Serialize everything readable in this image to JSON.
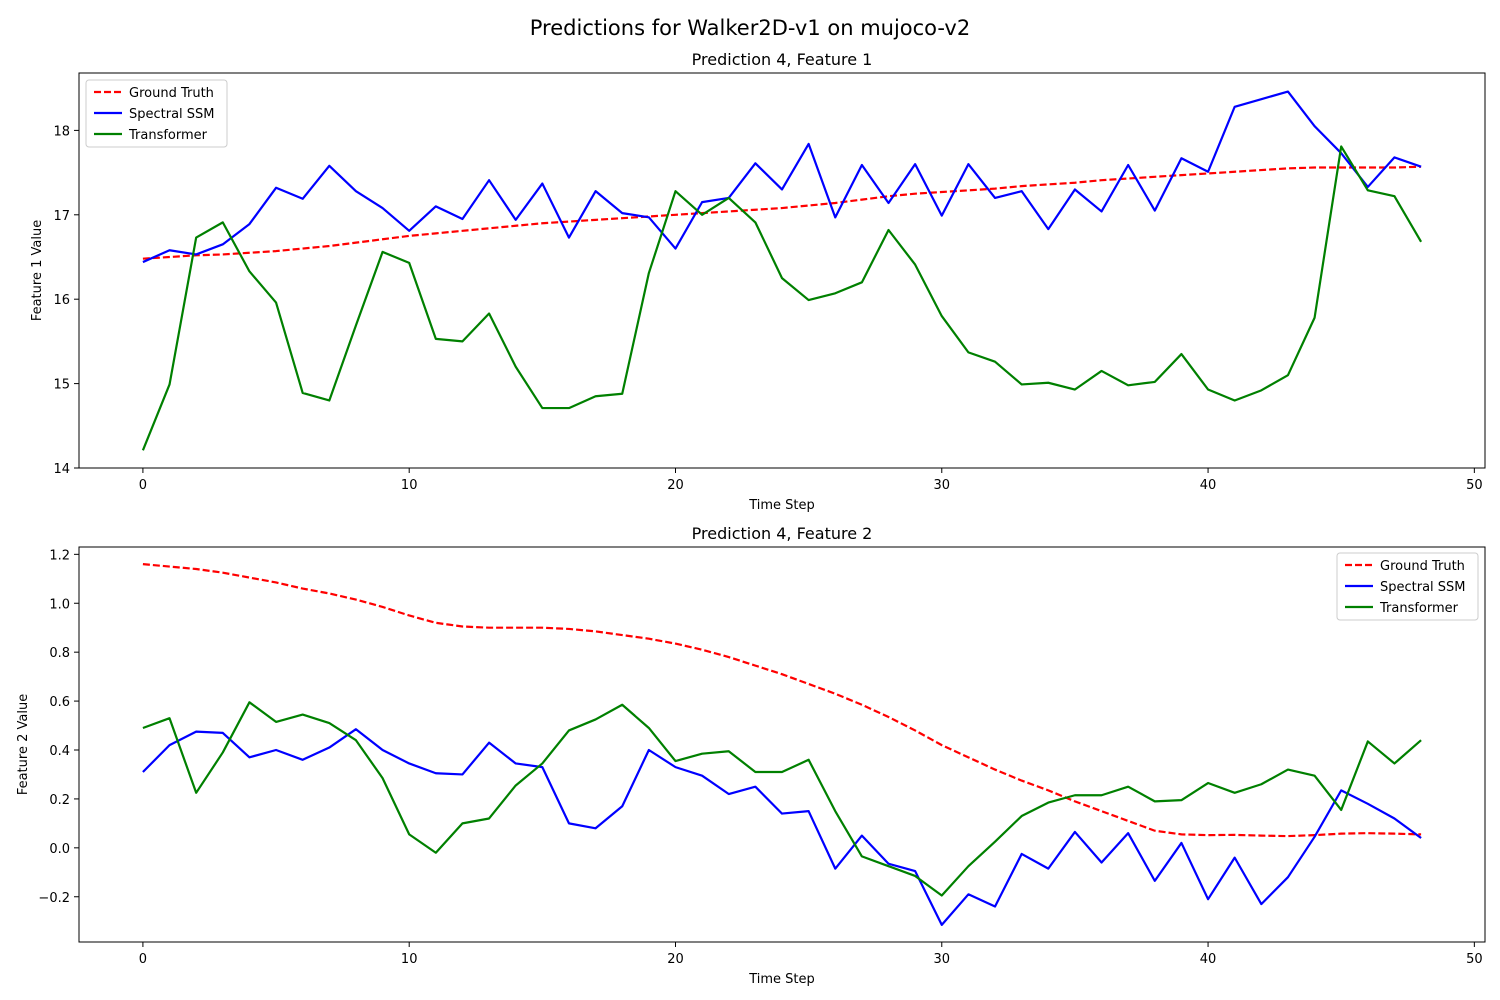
{
  "figure": {
    "title": "Predictions for Walker2D-v1 on mujoco-v2"
  },
  "chart_data": [
    {
      "type": "line",
      "title": "Prediction 4, Feature 1",
      "xlabel": "Time Step",
      "ylabel": "Feature 1 Value",
      "xlim": [
        -2.4,
        50.4
      ],
      "ylim": [
        14,
        18.68
      ],
      "xticks": [
        0,
        10,
        20,
        30,
        40,
        50
      ],
      "yticks": [
        14,
        15,
        16,
        17,
        18
      ],
      "legend_loc": "upper left",
      "grid": false,
      "x": [
        0,
        1,
        2,
        3,
        4,
        5,
        6,
        7,
        8,
        9,
        10,
        11,
        12,
        13,
        14,
        15,
        16,
        17,
        18,
        19,
        20,
        21,
        22,
        23,
        24,
        25,
        26,
        27,
        28,
        29,
        30,
        31,
        32,
        33,
        34,
        35,
        36,
        37,
        38,
        39,
        40,
        41,
        42,
        43,
        44,
        45,
        46,
        47,
        48
      ],
      "series": [
        {
          "name": "Ground Truth",
          "color": "#ff0000",
          "dash": "dashed",
          "values": [
            16.48,
            16.5,
            16.52,
            16.53,
            16.55,
            16.57,
            16.6,
            16.63,
            16.67,
            16.71,
            16.75,
            16.78,
            16.81,
            16.84,
            16.87,
            16.9,
            16.92,
            16.94,
            16.96,
            16.98,
            17.0,
            17.02,
            17.04,
            17.06,
            17.08,
            17.11,
            17.14,
            17.18,
            17.22,
            17.25,
            17.27,
            17.29,
            17.31,
            17.34,
            17.36,
            17.38,
            17.41,
            17.43,
            17.45,
            17.47,
            17.49,
            17.51,
            17.53,
            17.55,
            17.56,
            17.56,
            17.56,
            17.56,
            17.57
          ]
        },
        {
          "name": "Spectral SSM",
          "color": "#0000ff",
          "dash": "solid",
          "values": [
            16.44,
            16.58,
            16.53,
            16.65,
            16.89,
            17.32,
            17.19,
            17.58,
            17.28,
            17.08,
            16.81,
            17.1,
            16.95,
            17.41,
            16.94,
            17.37,
            16.73,
            17.28,
            17.02,
            16.97,
            16.6,
            17.15,
            17.2,
            17.61,
            17.3,
            17.84,
            16.97,
            17.59,
            17.14,
            17.6,
            16.99,
            17.6,
            17.2,
            17.28,
            16.83,
            17.3,
            17.04,
            17.59,
            17.05,
            17.67,
            17.51,
            18.28,
            18.37,
            18.46,
            18.05,
            17.73,
            17.33,
            17.68,
            17.57
          ]
        },
        {
          "name": "Transformer",
          "color": "#008000",
          "dash": "solid",
          "values": [
            14.21,
            14.99,
            16.73,
            16.91,
            16.33,
            15.96,
            14.89,
            14.8,
            15.69,
            16.56,
            16.43,
            15.53,
            15.5,
            15.83,
            15.2,
            14.71,
            14.71,
            14.85,
            14.88,
            16.31,
            17.28,
            17.0,
            17.2,
            16.91,
            16.25,
            15.99,
            16.07,
            16.2,
            16.82,
            16.41,
            15.8,
            15.37,
            15.26,
            14.99,
            15.01,
            14.93,
            15.15,
            14.98,
            15.02,
            15.35,
            14.93,
            14.8,
            14.92,
            15.1,
            15.78,
            17.81,
            17.29,
            17.22,
            16.68
          ]
        }
      ]
    },
    {
      "type": "line",
      "title": "Prediction 4, Feature 2",
      "xlabel": "Time Step",
      "ylabel": "Feature 2 Value",
      "xlim": [
        -2.4,
        50.4
      ],
      "ylim": [
        -0.385,
        1.23
      ],
      "xticks": [
        0,
        10,
        20,
        30,
        40,
        50
      ],
      "yticks": [
        -0.2,
        0.0,
        0.2,
        0.4,
        0.6,
        0.8,
        1.0,
        1.2
      ],
      "ytick_labels": [
        "−0.2",
        "0.0",
        "0.2",
        "0.4",
        "0.6",
        "0.8",
        "1.0",
        "1.2"
      ],
      "legend_loc": "upper right",
      "grid": false,
      "x": [
        0,
        1,
        2,
        3,
        4,
        5,
        6,
        7,
        8,
        9,
        10,
        11,
        12,
        13,
        14,
        15,
        16,
        17,
        18,
        19,
        20,
        21,
        22,
        23,
        24,
        25,
        26,
        27,
        28,
        29,
        30,
        31,
        32,
        33,
        34,
        35,
        36,
        37,
        38,
        39,
        40,
        41,
        42,
        43,
        44,
        45,
        46,
        47,
        48
      ],
      "series": [
        {
          "name": "Ground Truth",
          "color": "#ff0000",
          "dash": "dashed",
          "values": [
            1.16,
            1.15,
            1.14,
            1.125,
            1.105,
            1.085,
            1.06,
            1.04,
            1.015,
            0.985,
            0.95,
            0.92,
            0.905,
            0.9,
            0.9,
            0.9,
            0.895,
            0.885,
            0.87,
            0.855,
            0.835,
            0.81,
            0.78,
            0.745,
            0.71,
            0.67,
            0.63,
            0.585,
            0.535,
            0.48,
            0.42,
            0.37,
            0.32,
            0.275,
            0.235,
            0.19,
            0.15,
            0.11,
            0.07,
            0.055,
            0.052,
            0.053,
            0.05,
            0.048,
            0.052,
            0.058,
            0.06,
            0.058,
            0.055
          ]
        },
        {
          "name": "Spectral SSM",
          "color": "#0000ff",
          "dash": "solid",
          "values": [
            0.31,
            0.42,
            0.475,
            0.47,
            0.37,
            0.4,
            0.36,
            0.41,
            0.485,
            0.4,
            0.345,
            0.305,
            0.3,
            0.43,
            0.345,
            0.33,
            0.1,
            0.08,
            0.17,
            0.4,
            0.33,
            0.295,
            0.22,
            0.25,
            0.14,
            0.15,
            -0.085,
            0.05,
            -0.065,
            -0.095,
            -0.315,
            -0.19,
            -0.24,
            -0.025,
            -0.085,
            0.065,
            -0.06,
            0.06,
            -0.135,
            0.02,
            -0.21,
            -0.04,
            -0.23,
            -0.12,
            0.045,
            0.235,
            0.18,
            0.12,
            0.04
          ]
        },
        {
          "name": "Transformer",
          "color": "#008000",
          "dash": "solid",
          "values": [
            0.49,
            0.53,
            0.225,
            0.39,
            0.595,
            0.515,
            0.545,
            0.51,
            0.44,
            0.285,
            0.055,
            -0.02,
            0.1,
            0.12,
            0.255,
            0.345,
            0.48,
            0.525,
            0.585,
            0.49,
            0.355,
            0.385,
            0.395,
            0.31,
            0.31,
            0.36,
            0.15,
            -0.035,
            -0.075,
            -0.115,
            -0.195,
            -0.075,
            0.025,
            0.13,
            0.185,
            0.215,
            0.215,
            0.25,
            0.19,
            0.195,
            0.265,
            0.225,
            0.26,
            0.32,
            0.295,
            0.155,
            0.435,
            0.345,
            0.44
          ]
        }
      ]
    }
  ]
}
